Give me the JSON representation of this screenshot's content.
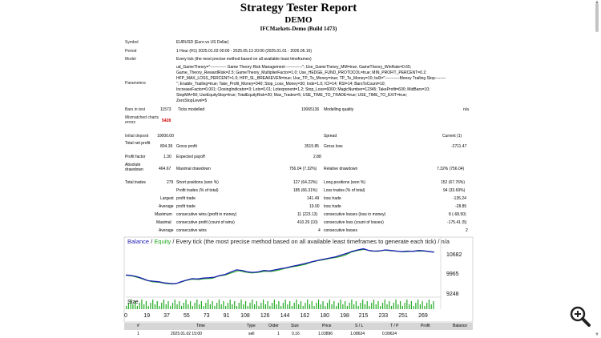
{
  "header": {
    "title": "Strategy Tester Report",
    "subtitle": "DEMO",
    "server": "IFCMarkets-Demo (Build 1473)"
  },
  "info": [
    {
      "label": "Symbol",
      "value": "EURUSD (Euro vs US Dollar)"
    },
    {
      "label": "Period",
      "value": "1 Hour (H1) 2025.01.02 00:00 - 2025.05.13 20:00 (2025.01.01 - 2026.05.16)"
    },
    {
      "label": "Model",
      "value": "Every tick (the most precise method based on all available least timeframes)"
    }
  ],
  "parameters": {
    "label": "Parameters",
    "lines": [
      "ud_GameTheory=\"------------ Game Theory Risk Management ------------\"; Use_GameTheory_MM=true; GameTheory_WinRate=0.65;",
      "Game_Theory_RewardRisk=2.5; GameTheory_MultiplierFactor=1.0; Use_HEDGE_FUND_PROTOCOL=true; MIN_PROFIT_PERCENT=0.2;",
      "HFP_MAX_LOSS_PERCENT=1.0; HFP_SL_BREAKEVEN=true; Use_TP_To_Money=true; TP_To_Money=10; bd3=\"-----------Money Trailing Stop--------",
      "\"; Enable_Trailing=true; Take_Profit_Money=340; Stop_Loss_Money=30; Inds=1.0; ICI=14; RSI=14; BarsToCount=10;",
      "IncreaseFactor=0.001; ClosingIndicator=3; Lots=0.01; Lotexponent=1.2; Stop_Loss=6000; MagicNumber=12345; TakeProfit=600; MidBars=10;",
      "StopMA=50; UseEquityStop=true; TotalEquityRisk=20; Max_Trades=5; USE_TIME_TO_TRADE=true; USE_TIME_TO_EXIT=true;",
      "ZeroStopLevel=5"
    ]
  },
  "bars_row": {
    "label1": "Bars in test",
    "value1": "11573",
    "label2": "Ticks modelled",
    "value2": "10065136",
    "label3": "Modelling quality",
    "value3": "n/a"
  },
  "mismatch_row": {
    "label": "Mismatched charts errors",
    "value": "5428"
  },
  "deposit_row": {
    "label1": "Initial deposit",
    "value1": "10000.00",
    "label2": "Spread",
    "value2": "Current (1)"
  },
  "stats_rows": [
    {
      "l1": "Total net profit",
      "v1": "804.39",
      "l2": "Gross profit",
      "v2": "3515.85",
      "l3": "Gross loss",
      "v3": "-2711.47"
    },
    {
      "l1": "Profit factor",
      "v1": "1.30",
      "l2": "Expected payoff",
      "v2": "2.88",
      "l3": "",
      "v3": ""
    },
    {
      "l1": "Absolute drawdown",
      "v1": "464.67",
      "l2": "Maximal drawdown",
      "v2": "756.04 (7.32%)",
      "l3": "Relative drawdown",
      "v3": "7.32% (756.04)"
    }
  ],
  "trades_rows": [
    {
      "l0": "Total trades",
      "v0": "279",
      "l1": "Short positions (won %)",
      "v1": "127 (64.22%)",
      "l2": "Long positions (won %)",
      "v2": "152 (67.76%)"
    },
    {
      "l0": "",
      "v0": "",
      "l1": "Profit trades (% of total)",
      "v1": "185 (66.31%)",
      "l2": "Loss trades (% of total)",
      "v2": "94 (33.69%)"
    },
    {
      "l0": "Largest",
      "v0": "",
      "l1": "profit trade",
      "v1": "141.49",
      "l2": "loss trade",
      "v2": "-135.24"
    },
    {
      "l0": "Average",
      "v0": "",
      "l1": "profit trade",
      "v1": "19.00",
      "l2": "loss trade",
      "v2": "-28.85"
    },
    {
      "l0": "Maximum",
      "v0": "",
      "l1": "consecutive wins (profit in money)",
      "v1": "11 (223.13)",
      "l2": "consecutive losses (loss in money)",
      "v2": "8 (-68.50)"
    },
    {
      "l0": "Maximal",
      "v0": "",
      "l1": "consecutive profit (count of wins)",
      "v1": "410.29 (10)",
      "l2": "consecutive loss (count of losses)",
      "v2": "-175.41 (5)"
    },
    {
      "l0": "Average",
      "v0": "",
      "l1": "consecutive wins",
      "v1": "4",
      "l2": "consecutive losses",
      "v2": "2"
    }
  ],
  "chart_data": {
    "type": "line",
    "title_balance": "Balance",
    "title_sep": "/",
    "title_equity": "Equity",
    "title_rest": "/ Every tick (the most precise method based on all available least timeframes to generate each tick) / n/a",
    "size_label": "Size",
    "y_ticks": [
      "10682",
      "9965",
      "9248"
    ],
    "x_ticks": [
      "0",
      "19",
      "37",
      "55",
      "73",
      "91",
      "108",
      "126",
      "144",
      "162",
      "180",
      "198",
      "215",
      "233",
      "251",
      "269"
    ],
    "ylim": [
      9248,
      11050
    ],
    "xlim": [
      0,
      285
    ],
    "balance_color": "#1f1fb5",
    "equity_color": "#22aa22",
    "size_color": "#22aa22",
    "balance": [
      [
        0,
        10000
      ],
      [
        5,
        9980
      ],
      [
        10,
        9940
      ],
      [
        15,
        9880
      ],
      [
        20,
        9800
      ],
      [
        25,
        9780
      ],
      [
        30,
        9760
      ],
      [
        35,
        9720
      ],
      [
        40,
        9700
      ],
      [
        45,
        9690
      ],
      [
        50,
        9760
      ],
      [
        55,
        9820
      ],
      [
        60,
        9870
      ],
      [
        65,
        9860
      ],
      [
        70,
        9890
      ],
      [
        75,
        9900
      ],
      [
        80,
        9920
      ],
      [
        85,
        9980
      ],
      [
        90,
        10020
      ],
      [
        95,
        10100
      ],
      [
        100,
        10180
      ],
      [
        105,
        10160
      ],
      [
        110,
        10110
      ],
      [
        115,
        10090
      ],
      [
        120,
        10110
      ],
      [
        125,
        10160
      ],
      [
        130,
        10140
      ],
      [
        135,
        10180
      ],
      [
        140,
        10220
      ],
      [
        145,
        10250
      ],
      [
        150,
        10300
      ],
      [
        155,
        10340
      ],
      [
        160,
        10380
      ],
      [
        165,
        10430
      ],
      [
        170,
        10480
      ],
      [
        175,
        10520
      ],
      [
        180,
        10560
      ],
      [
        185,
        10600
      ],
      [
        190,
        10640
      ],
      [
        195,
        10700
      ],
      [
        200,
        10760
      ],
      [
        205,
        10830
      ],
      [
        210,
        10880
      ],
      [
        215,
        10920
      ],
      [
        220,
        10860
      ],
      [
        225,
        10840
      ],
      [
        230,
        10850
      ],
      [
        235,
        10880
      ],
      [
        240,
        10860
      ],
      [
        245,
        10840
      ],
      [
        250,
        10820
      ],
      [
        255,
        10840
      ],
      [
        260,
        10830
      ],
      [
        265,
        10860
      ],
      [
        270,
        10850
      ],
      [
        275,
        10820
      ],
      [
        279,
        10804
      ]
    ],
    "equity": [
      [
        0,
        9990
      ],
      [
        6,
        9960
      ],
      [
        12,
        9900
      ],
      [
        18,
        9820
      ],
      [
        24,
        9760
      ],
      [
        30,
        9740
      ],
      [
        36,
        9700
      ],
      [
        42,
        9680
      ],
      [
        48,
        9720
      ],
      [
        54,
        9800
      ],
      [
        60,
        9850
      ],
      [
        66,
        9840
      ],
      [
        72,
        9870
      ],
      [
        78,
        9880
      ],
      [
        84,
        9960
      ],
      [
        90,
        10000
      ],
      [
        96,
        10080
      ],
      [
        102,
        10150
      ],
      [
        108,
        10100
      ],
      [
        114,
        10070
      ],
      [
        120,
        10090
      ],
      [
        126,
        10130
      ],
      [
        132,
        10120
      ],
      [
        138,
        10170
      ],
      [
        144,
        10230
      ],
      [
        150,
        10280
      ],
      [
        156,
        10320
      ],
      [
        162,
        10370
      ],
      [
        168,
        10450
      ],
      [
        174,
        10500
      ],
      [
        180,
        10540
      ],
      [
        186,
        10590
      ],
      [
        192,
        10630
      ],
      [
        198,
        10690
      ],
      [
        204,
        10800
      ],
      [
        210,
        10860
      ],
      [
        216,
        10900
      ],
      [
        222,
        10840
      ],
      [
        228,
        10830
      ],
      [
        234,
        10870
      ],
      [
        240,
        10850
      ],
      [
        246,
        10830
      ],
      [
        252,
        10810
      ],
      [
        258,
        10830
      ],
      [
        264,
        10840
      ],
      [
        270,
        10835
      ],
      [
        279,
        10800
      ]
    ]
  },
  "trade_table": {
    "headers": [
      "#",
      "Time",
      "Type",
      "Order",
      "Size",
      "Price",
      "S / L",
      "T / P",
      "Profit",
      "Balance"
    ],
    "rows": [
      [
        "1",
        "2025.01.02 15:00",
        "sell",
        "1",
        "0.16",
        "1.03896",
        "1.08624",
        "0.99624",
        "",
        ""
      ]
    ]
  },
  "zoom_icon": "magnifier-plus-icon"
}
